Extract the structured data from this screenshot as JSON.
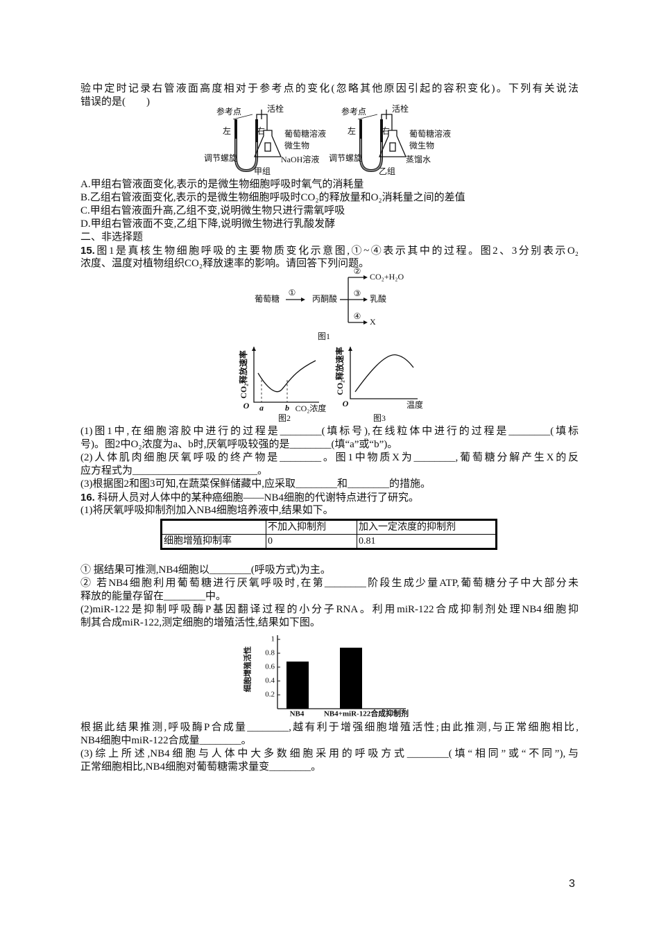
{
  "intro": [
    "验中定时记录右管液面高度相对于参考点的变化(忽略其他原因引起的容积变化)。下列有关说法",
    "错误的是(　　)"
  ],
  "apparatus": {
    "groups": [
      {
        "reference": "参考点",
        "stopcock": "活栓",
        "left": "左",
        "right": "右",
        "glucose": "葡萄糖溶液",
        "microbe": "微生物",
        "screw": "调节螺旋",
        "solution": "NaOH溶液",
        "caption": "甲组"
      },
      {
        "reference": "参考点",
        "stopcock": "活栓",
        "left": "左",
        "right": "右",
        "glucose": "葡萄糖溶液",
        "microbe": "微生物",
        "screw": "调节螺旋",
        "solution": "蒸馏水",
        "caption": "乙组"
      }
    ]
  },
  "options": [
    "A.甲组右管液面变化,表示的是微生物细胞呼吸时氧气的消耗量",
    "B.乙组右管液面变化,表示的是微生物细胞呼吸时CO₂的释放量和O₂消耗量之间的差值",
    "C.甲组右管液面升高,乙组不变,说明微生物只进行需氧呼吸",
    "D.甲组右管液面不变,乙组下降,说明微生物进行乳酸发酵"
  ],
  "section": "二、非选择题",
  "q15": {
    "number": "15.",
    "stem": [
      "图1是真核生物细胞呼吸的主要物质变化示意图,①~④表示其中的过程。图2、3分别表示O₂",
      "浓度、温度对植物组织CO₂释放速率的影响。请回答下列问题。"
    ],
    "fig1": {
      "glucose": "葡萄糖",
      "step1": "①",
      "pyruvate": "丙酮酸",
      "step2": "②",
      "product2": "CO₂+H₂O",
      "step3": "③",
      "product3": "乳酸",
      "step4": "④",
      "product4": "X",
      "caption": "图1"
    },
    "fig2": {
      "ylabel": "CO₂释放速率",
      "origin": "O",
      "a": "a",
      "b": "b",
      "xlabel": "CO₂浓度",
      "caption": "图2"
    },
    "fig3": {
      "ylabel": "CO₂释放速率",
      "origin": "O",
      "xlabel": "温度",
      "caption": "图3"
    },
    "parts": [
      "(1)图1中,在细胞溶胶中进行的过程是________(填标号),在线粒体中进行的过程是________(填标",
      "号)。图2中O₂浓度为a、b时,厌氧呼吸较强的是________(填“a”或“b”)。",
      "(2)人体肌肉细胞厌氧呼吸的终产物是________。图1中物质X为________,葡萄糖分解产生X的反",
      "应方程式为________________________。",
      "(3)根据图2和图3可知,在蔬菜保鲜储藏中,应采取________和________的措施。"
    ]
  },
  "q16": {
    "number": "16.",
    "stem": "科研人员对人体中的某种癌细胞——NB4细胞的代谢特点进行了研究。",
    "part1": "(1)将厌氧呼吸抑制剂加入NB4细胞培养液中,结果如下。",
    "table": {
      "header": [
        "不加入抑制剂",
        "加入一定浓度的抑制剂"
      ],
      "rows": [
        [
          "细胞增殖抑制率",
          "0",
          "0.81"
        ]
      ]
    },
    "after_table": [
      "① 据结果可推测,NB4细胞以________(呼吸方式)为主。",
      "② 若NB4细胞利用葡萄糖进行厌氧呼吸时,在第________阶段生成少量ATP,葡萄糖分子中大部分未",
      "释放的能量存留在________中。",
      "(2)miR-122是抑制呼吸酶P基因翻译过程的小分子RNA。利用miR-122合成抑制剂处理NB4细胞抑",
      "制其合成miR-122,测定细胞的增殖活性,结果如下图。"
    ],
    "chart_data": {
      "type": "bar",
      "ylabel": "细胞增殖活性",
      "categories": [
        "NB4",
        "NB4+miR-122合成抑制剂"
      ],
      "values": [
        0.68,
        0.88
      ],
      "color": "#000000",
      "ylim": [
        0,
        1
      ],
      "yticks": [
        0.2,
        0.4,
        0.6,
        0.8,
        1
      ]
    },
    "after_chart": [
      "根据此结果推测,呼吸酶P合成量________,越有利于增强细胞增殖活性;由此推测,与正常细胞相比,",
      "NB4细胞中miR-122合成量________。",
      "(3)综上所述,NB4细胞与人体中大多数细胞采用的呼吸方式________(填“相同”或“不同”),与",
      "正常细胞相比,NB4细胞对葡萄糖需求量变________。"
    ]
  },
  "page_number": "3"
}
